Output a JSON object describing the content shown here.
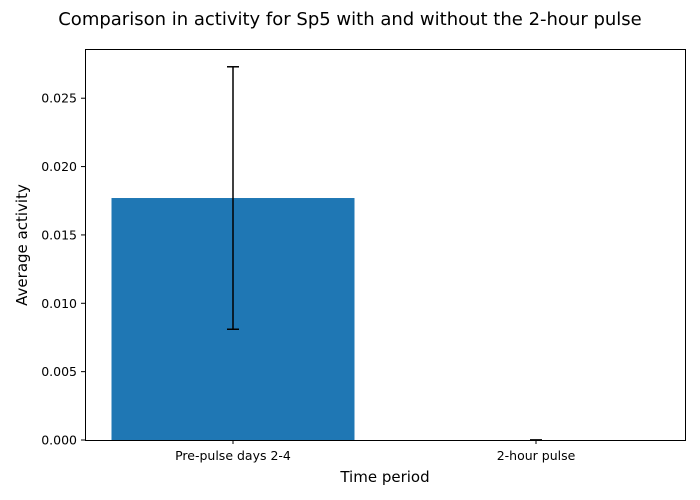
{
  "chart_data": {
    "type": "bar",
    "title": "Comparison in activity for Sp5 with and without the 2-hour pulse",
    "xlabel": "Time period",
    "ylabel": "Average activity",
    "categories": [
      "Pre-pulse days 2-4",
      "2-hour pulse"
    ],
    "values": [
      0.0177,
      0.0
    ],
    "errors": [
      0.0096,
      0.0
    ],
    "ylim": [
      0,
      0.0286
    ],
    "yticks": [
      0.0,
      0.005,
      0.01,
      0.015,
      0.02,
      0.025
    ],
    "ytick_labels": [
      "0.000",
      "0.005",
      "0.010",
      "0.015",
      "0.020",
      "0.025"
    ],
    "bar_color": "#1f77b4",
    "error_color": "#000000",
    "grid": false,
    "legend": "none"
  }
}
